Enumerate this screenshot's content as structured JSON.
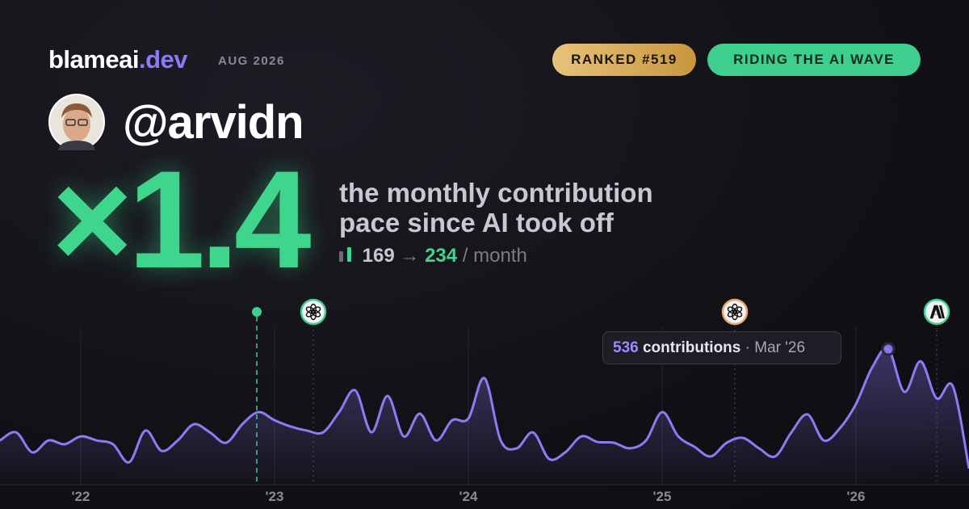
{
  "header": {
    "brand": "blameai",
    "brand_tld": ".dev",
    "date": "AUG 2026",
    "badges": [
      "RANKED #519",
      "RIDING THE AI WAVE"
    ]
  },
  "profile": {
    "handle": "@arvidn"
  },
  "headline": {
    "multiplier": "×1.4",
    "caption_lines": [
      "the monthly contribution",
      "pace since AI took off"
    ],
    "before": 169,
    "arrow": "→",
    "after": 234,
    "unit": "/ month"
  },
  "chart_data": {
    "type": "line",
    "color": "#8b7cf6",
    "x": [
      0,
      1,
      2,
      3,
      4,
      5,
      6,
      7,
      8,
      9,
      10,
      11,
      12,
      13,
      14,
      15,
      16,
      17,
      18,
      19,
      20,
      21,
      22,
      23,
      24,
      25,
      26,
      27,
      28,
      29,
      30,
      31,
      32,
      33,
      34,
      35,
      36,
      37,
      38,
      39,
      40,
      41,
      42,
      43,
      44,
      45,
      46,
      47,
      48,
      49,
      50,
      51,
      52,
      53,
      54,
      55,
      56,
      57,
      58,
      59,
      60
    ],
    "values": [
      175,
      207,
      128,
      175,
      160,
      191,
      175,
      160,
      89,
      214,
      134,
      175,
      239,
      207,
      166,
      239,
      287,
      255,
      230,
      214,
      207,
      287,
      373,
      207,
      351,
      191,
      281,
      175,
      255,
      262,
      421,
      175,
      144,
      207,
      102,
      128,
      191,
      169,
      166,
      144,
      175,
      287,
      191,
      150,
      112,
      166,
      185,
      144,
      112,
      207,
      278,
      175,
      223,
      319,
      463,
      536,
      367,
      488,
      341,
      389,
      64
    ],
    "xlim": [
      0,
      60
    ],
    "ylim": [
      0,
      600
    ],
    "xticks": [
      {
        "value": 5,
        "label": "'22"
      },
      {
        "value": 17,
        "label": "'23"
      },
      {
        "value": 29,
        "label": "'24"
      },
      {
        "value": 41,
        "label": "'25"
      },
      {
        "value": 53,
        "label": "'26"
      }
    ],
    "grid": true,
    "events": [
      {
        "x": 15.9,
        "color": "#3ecf8e"
      },
      {
        "x": 19.4,
        "color": "#3ecf8e"
      },
      {
        "x": 45.5,
        "color": "#e8a86a"
      },
      {
        "x": 58,
        "color": "#3ecf8e"
      }
    ],
    "tooltip": {
      "label": "contributions",
      "separator": "·",
      "date": "Mar '26"
    }
  }
}
